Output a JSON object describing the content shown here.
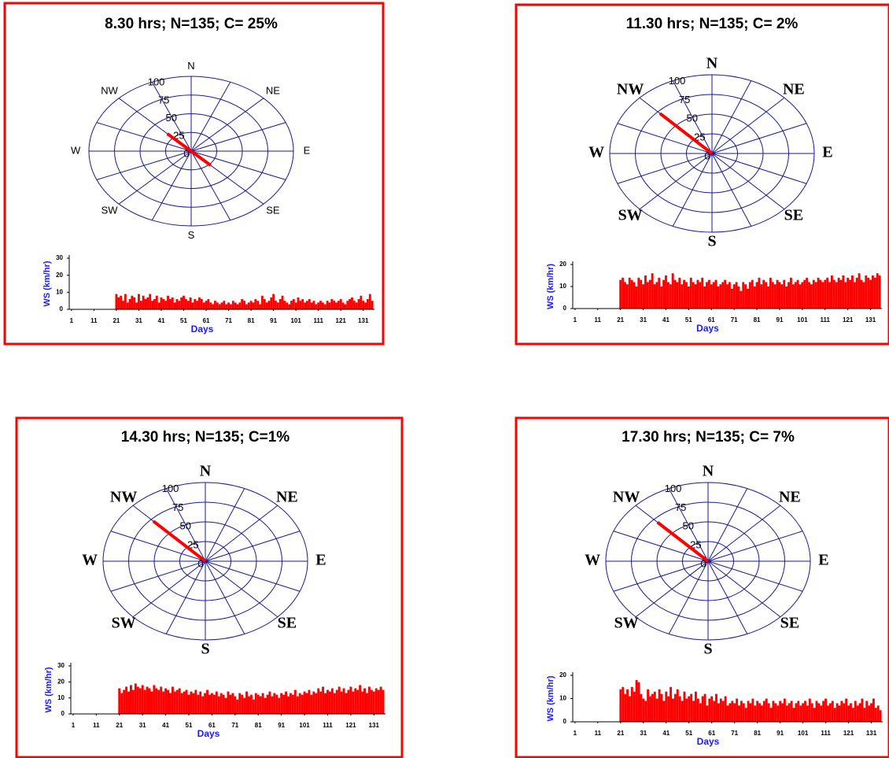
{
  "chart_data": [
    {
      "type": "rose",
      "title": "8.30 hrs; N=135; C= 25%",
      "categories": [
        "N",
        null,
        "NE",
        null,
        "E",
        null,
        "SE",
        null,
        "S",
        null,
        "SW",
        null,
        "W",
        null,
        "NW",
        null
      ],
      "values": [
        0,
        0,
        0,
        0,
        0,
        0,
        27,
        0,
        0,
        0,
        0,
        0,
        0,
        0,
        33,
        0
      ],
      "color": "#ff0000",
      "rlim": [
        0,
        100
      ],
      "rticks": [
        0,
        25,
        50,
        75,
        100
      ]
    },
    {
      "type": "bar",
      "xlabel": "Days",
      "ylabel": "WS (km/hr)",
      "color": "#ff0000",
      "x": [
        1,
        2,
        3,
        4,
        5,
        6,
        7,
        8,
        9,
        10,
        11,
        12,
        13,
        14,
        15,
        16,
        17,
        18,
        19,
        20,
        21,
        22,
        23,
        24,
        25,
        26,
        27,
        28,
        29,
        30,
        31,
        32,
        33,
        34,
        35,
        36,
        37,
        38,
        39,
        40,
        41,
        42,
        43,
        44,
        45,
        46,
        47,
        48,
        49,
        50,
        51,
        52,
        53,
        54,
        55,
        56,
        57,
        58,
        59,
        60,
        61,
        62,
        63,
        64,
        65,
        66,
        67,
        68,
        69,
        70,
        71,
        72,
        73,
        74,
        75,
        76,
        77,
        78,
        79,
        80,
        81,
        82,
        83,
        84,
        85,
        86,
        87,
        88,
        89,
        90,
        91,
        92,
        93,
        94,
        95,
        96,
        97,
        98,
        99,
        100,
        101,
        102,
        103,
        104,
        105,
        106,
        107,
        108,
        109,
        110,
        111,
        112,
        113,
        114,
        115,
        116,
        117,
        118,
        119,
        120,
        121,
        122,
        123,
        124,
        125,
        126,
        127,
        128,
        129,
        130,
        131,
        132,
        133,
        134,
        135
      ],
      "values": [
        0,
        0,
        0,
        0,
        0,
        0,
        0,
        0,
        0,
        0,
        0,
        0,
        0,
        0,
        0,
        0,
        0,
        0,
        0,
        0,
        9,
        7,
        8,
        5,
        9,
        4,
        6,
        8,
        7,
        4,
        9,
        5,
        8,
        6,
        7,
        9,
        5,
        6,
        8,
        4,
        7,
        6,
        5,
        8,
        6,
        7,
        4,
        6,
        5,
        7,
        8,
        6,
        5,
        7,
        4,
        6,
        5,
        7,
        6,
        4,
        5,
        6,
        4,
        3,
        5,
        4,
        3,
        4,
        5,
        3,
        4,
        3,
        5,
        4,
        3,
        4,
        6,
        5,
        3,
        4,
        5,
        4,
        6,
        5,
        3,
        8,
        6,
        4,
        5,
        7,
        9,
        5,
        4,
        6,
        8,
        5,
        4,
        3,
        5,
        6,
        4,
        7,
        5,
        6,
        4,
        5,
        6,
        4,
        5,
        3,
        4,
        5,
        4,
        3,
        5,
        4,
        6,
        5,
        4,
        5,
        6,
        4,
        3,
        5,
        6,
        7,
        5,
        4,
        6,
        8,
        5,
        4,
        6,
        9,
        5
      ],
      "xlim": [
        0,
        136
      ],
      "xticks": [
        1,
        11,
        21,
        31,
        41,
        51,
        61,
        71,
        81,
        91,
        101,
        111,
        121,
        131
      ],
      "ylim": [
        0,
        30
      ],
      "yticks": [
        0,
        10,
        20,
        30
      ]
    },
    {
      "type": "rose",
      "title": "11.30 hrs; N=135; C= 2%",
      "categories": [
        "N",
        null,
        "NE",
        null,
        "E",
        null,
        "SE",
        null,
        "S",
        null,
        "SW",
        null,
        "W",
        null,
        "NW",
        null
      ],
      "values": [
        0,
        0,
        0,
        0,
        0,
        0,
        0,
        0,
        0,
        0,
        0,
        0,
        0,
        0,
        72,
        0
      ],
      "color": "#ff0000",
      "rlim": [
        0,
        100
      ],
      "rticks": [
        0,
        25,
        50,
        75,
        100
      ]
    },
    {
      "type": "bar",
      "xlabel": "Days",
      "ylabel": "WS (km/hr)",
      "color": "#ff0000",
      "x": [
        1,
        2,
        3,
        4,
        5,
        6,
        7,
        8,
        9,
        10,
        11,
        12,
        13,
        14,
        15,
        16,
        17,
        18,
        19,
        20,
        21,
        22,
        23,
        24,
        25,
        26,
        27,
        28,
        29,
        30,
        31,
        32,
        33,
        34,
        35,
        36,
        37,
        38,
        39,
        40,
        41,
        42,
        43,
        44,
        45,
        46,
        47,
        48,
        49,
        50,
        51,
        52,
        53,
        54,
        55,
        56,
        57,
        58,
        59,
        60,
        61,
        62,
        63,
        64,
        65,
        66,
        67,
        68,
        69,
        70,
        71,
        72,
        73,
        74,
        75,
        76,
        77,
        78,
        79,
        80,
        81,
        82,
        83,
        84,
        85,
        86,
        87,
        88,
        89,
        90,
        91,
        92,
        93,
        94,
        95,
        96,
        97,
        98,
        99,
        100,
        101,
        102,
        103,
        104,
        105,
        106,
        107,
        108,
        109,
        110,
        111,
        112,
        113,
        114,
        115,
        116,
        117,
        118,
        119,
        120,
        121,
        122,
        123,
        124,
        125,
        126,
        127,
        128,
        129,
        130,
        131,
        132,
        133,
        134,
        135
      ],
      "values": [
        0,
        0,
        0,
        0,
        0,
        0,
        0,
        0,
        0,
        0,
        0,
        0,
        0,
        0,
        0,
        0,
        0,
        0,
        0,
        0,
        13,
        14,
        12,
        11,
        14,
        13,
        12,
        10,
        14,
        13,
        11,
        15,
        12,
        13,
        16,
        11,
        12,
        14,
        10,
        13,
        15,
        12,
        11,
        16,
        13,
        12,
        14,
        11,
        13,
        12,
        10,
        14,
        12,
        11,
        13,
        12,
        14,
        10,
        12,
        13,
        11,
        12,
        13,
        10,
        11,
        12,
        13,
        11,
        12,
        9,
        11,
        12,
        10,
        8,
        12,
        11,
        9,
        12,
        13,
        10,
        12,
        14,
        11,
        13,
        12,
        10,
        14,
        12,
        11,
        13,
        12,
        11,
        13,
        10,
        12,
        14,
        11,
        12,
        13,
        11,
        12,
        13,
        14,
        12,
        11,
        13,
        12,
        14,
        13,
        12,
        13,
        14,
        12,
        15,
        13,
        12,
        14,
        13,
        15,
        12,
        14,
        13,
        15,
        12,
        14,
        16,
        13,
        12,
        15,
        14,
        13,
        15,
        14,
        16,
        15
      ],
      "xlim": [
        0,
        136
      ],
      "xticks": [
        1,
        11,
        21,
        31,
        41,
        51,
        61,
        71,
        81,
        91,
        101,
        111,
        121,
        131
      ],
      "ylim": [
        0,
        20
      ],
      "yticks": [
        0,
        10,
        20
      ]
    },
    {
      "type": "rose",
      "title": "14.30 hrs; N=135; C=1%",
      "categories": [
        "N",
        null,
        "NE",
        null,
        "E",
        null,
        "SE",
        null,
        "S",
        null,
        "SW",
        null,
        "W",
        null,
        "NW",
        null
      ],
      "values": [
        0,
        0,
        0,
        0,
        0,
        0,
        0,
        0,
        0,
        0,
        0,
        0,
        0,
        0,
        72,
        0
      ],
      "color": "#ff0000",
      "rlim": [
        0,
        100
      ],
      "rticks": [
        0,
        25,
        50,
        75,
        100
      ]
    },
    {
      "type": "bar",
      "xlabel": "Days",
      "ylabel": "WS (km/hr)",
      "color": "#ff0000",
      "x": [
        1,
        2,
        3,
        4,
        5,
        6,
        7,
        8,
        9,
        10,
        11,
        12,
        13,
        14,
        15,
        16,
        17,
        18,
        19,
        20,
        21,
        22,
        23,
        24,
        25,
        26,
        27,
        28,
        29,
        30,
        31,
        32,
        33,
        34,
        35,
        36,
        37,
        38,
        39,
        40,
        41,
        42,
        43,
        44,
        45,
        46,
        47,
        48,
        49,
        50,
        51,
        52,
        53,
        54,
        55,
        56,
        57,
        58,
        59,
        60,
        61,
        62,
        63,
        64,
        65,
        66,
        67,
        68,
        69,
        70,
        71,
        72,
        73,
        74,
        75,
        76,
        77,
        78,
        79,
        80,
        81,
        82,
        83,
        84,
        85,
        86,
        87,
        88,
        89,
        90,
        91,
        92,
        93,
        94,
        95,
        96,
        97,
        98,
        99,
        100,
        101,
        102,
        103,
        104,
        105,
        106,
        107,
        108,
        109,
        110,
        111,
        112,
        113,
        114,
        115,
        116,
        117,
        118,
        119,
        120,
        121,
        122,
        123,
        124,
        125,
        126,
        127,
        128,
        129,
        130,
        131,
        132,
        133,
        134,
        135
      ],
      "values": [
        0,
        0,
        0,
        0,
        0,
        0,
        0,
        0,
        0,
        0,
        0,
        0,
        0,
        0,
        0,
        0,
        0,
        0,
        0,
        0,
        16,
        13,
        15,
        17,
        14,
        18,
        15,
        19,
        17,
        16,
        18,
        15,
        17,
        16,
        14,
        18,
        16,
        15,
        17,
        14,
        16,
        15,
        13,
        17,
        14,
        15,
        16,
        13,
        14,
        15,
        12,
        14,
        13,
        15,
        12,
        14,
        11,
        13,
        15,
        12,
        13,
        12,
        14,
        11,
        13,
        12,
        10,
        14,
        12,
        13,
        11,
        9,
        13,
        12,
        10,
        14,
        11,
        12,
        9,
        13,
        12,
        11,
        13,
        10,
        12,
        14,
        11,
        13,
        12,
        10,
        13,
        12,
        14,
        11,
        13,
        12,
        15,
        11,
        13,
        12,
        14,
        13,
        15,
        12,
        14,
        13,
        16,
        14,
        17,
        13,
        15,
        14,
        16,
        13,
        15,
        17,
        14,
        16,
        13,
        15,
        17,
        14,
        16,
        15,
        18,
        14,
        16,
        13,
        17,
        15,
        14,
        16,
        15,
        17,
        15
      ],
      "xlim": [
        0,
        136
      ],
      "xticks": [
        1,
        11,
        21,
        31,
        41,
        51,
        61,
        71,
        81,
        91,
        101,
        111,
        121,
        131
      ],
      "ylim": [
        0,
        30
      ],
      "yticks": [
        0,
        10,
        20,
        30
      ]
    },
    {
      "type": "rose",
      "title": "17.30 hrs; N=135; C= 7%",
      "categories": [
        "N",
        null,
        "NE",
        null,
        "E",
        null,
        "SE",
        null,
        "S",
        null,
        "SW",
        null,
        "W",
        null,
        "NW",
        null
      ],
      "values": [
        0,
        0,
        0,
        0,
        0,
        0,
        0,
        0,
        0,
        0,
        0,
        0,
        0,
        0,
        70,
        0
      ],
      "color": "#ff0000",
      "rlim": [
        0,
        100
      ],
      "rticks": [
        0,
        25,
        50,
        75,
        100
      ]
    },
    {
      "type": "bar",
      "xlabel": "Days",
      "ylabel": "WS (km/hr)",
      "color": "#ff0000",
      "x": [
        1,
        2,
        3,
        4,
        5,
        6,
        7,
        8,
        9,
        10,
        11,
        12,
        13,
        14,
        15,
        16,
        17,
        18,
        19,
        20,
        21,
        22,
        23,
        24,
        25,
        26,
        27,
        28,
        29,
        30,
        31,
        32,
        33,
        34,
        35,
        36,
        37,
        38,
        39,
        40,
        41,
        42,
        43,
        44,
        45,
        46,
        47,
        48,
        49,
        50,
        51,
        52,
        53,
        54,
        55,
        56,
        57,
        58,
        59,
        60,
        61,
        62,
        63,
        64,
        65,
        66,
        67,
        68,
        69,
        70,
        71,
        72,
        73,
        74,
        75,
        76,
        77,
        78,
        79,
        80,
        81,
        82,
        83,
        84,
        85,
        86,
        87,
        88,
        89,
        90,
        91,
        92,
        93,
        94,
        95,
        96,
        97,
        98,
        99,
        100,
        101,
        102,
        103,
        104,
        105,
        106,
        107,
        108,
        109,
        110,
        111,
        112,
        113,
        114,
        115,
        116,
        117,
        118,
        119,
        120,
        121,
        122,
        123,
        124,
        125,
        126,
        127,
        128,
        129,
        130,
        131,
        132,
        133,
        134,
        135
      ],
      "values": [
        0,
        0,
        0,
        0,
        0,
        0,
        0,
        0,
        0,
        0,
        0,
        0,
        0,
        0,
        0,
        0,
        0,
        0,
        0,
        0,
        14,
        15,
        12,
        14,
        11,
        15,
        13,
        18,
        17,
        12,
        10,
        9,
        14,
        11,
        12,
        13,
        10,
        14,
        12,
        9,
        13,
        11,
        15,
        10,
        12,
        14,
        11,
        9,
        13,
        10,
        11,
        12,
        9,
        13,
        10,
        8,
        11,
        12,
        7,
        10,
        11,
        9,
        12,
        8,
        10,
        9,
        11,
        7,
        8,
        9,
        8,
        10,
        7,
        9,
        8,
        6,
        9,
        8,
        10,
        7,
        9,
        8,
        7,
        9,
        10,
        8,
        6,
        9,
        8,
        7,
        9,
        8,
        10,
        7,
        8,
        9,
        6,
        8,
        9,
        7,
        8,
        9,
        7,
        10,
        8,
        6,
        9,
        8,
        7,
        9,
        10,
        7,
        8,
        9,
        6,
        8,
        7,
        9,
        8,
        10,
        7,
        8,
        6,
        9,
        7,
        8,
        10,
        6,
        9,
        7,
        8,
        10,
        6,
        7,
        5
      ],
      "xlim": [
        0,
        136
      ],
      "xticks": [
        1,
        11,
        21,
        31,
        41,
        51,
        61,
        71,
        81,
        91,
        101,
        111,
        121,
        131
      ],
      "ylim": [
        0,
        20
      ],
      "yticks": [
        0,
        10,
        20
      ]
    }
  ]
}
